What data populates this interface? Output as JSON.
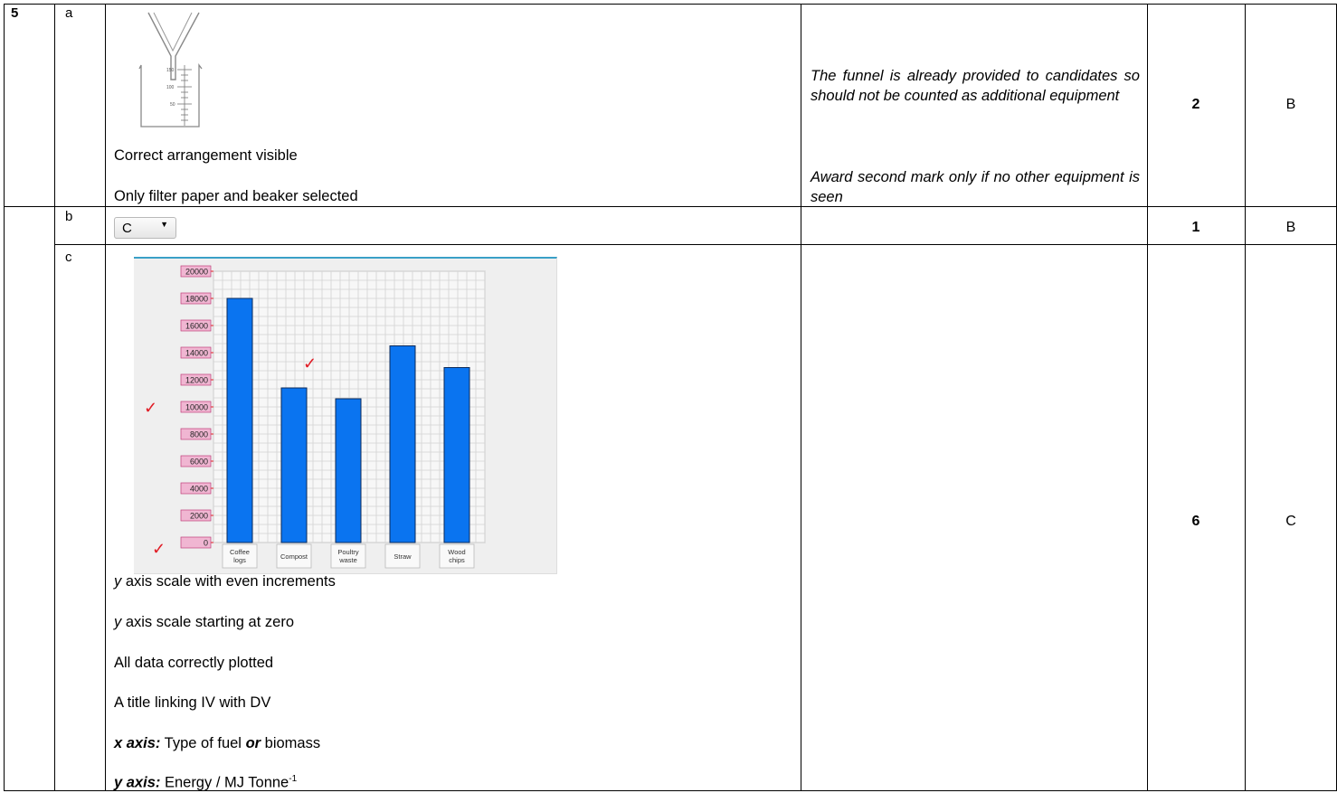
{
  "question": {
    "number": "5",
    "parts": [
      {
        "label": "a",
        "answer_lines": [
          "Correct arrangement visible",
          "Only filter paper and beaker selected"
        ],
        "guidance": [
          "The funnel is already provided to candidates so should not be counted as additional equipment",
          "Award second mark only if no other equipment is seen"
        ],
        "marks": "2",
        "ao": "B",
        "beaker_labels": [
          "150",
          "100",
          "50"
        ]
      },
      {
        "label": "b",
        "dropdown_value": "C",
        "marks": "1",
        "ao": "B"
      },
      {
        "label": "c",
        "tick_symbol": "✓",
        "answer_lines": [
          {
            "prefix": "y",
            "text": " axis scale with even increments"
          },
          {
            "prefix": "y",
            "text": " axis scale starting at zero"
          },
          {
            "prefix": "",
            "text": "All data correctly plotted"
          },
          {
            "prefix": "",
            "text": "A title linking IV with DV"
          },
          {
            "bold_label": "x axis:",
            "text1": " Type of fuel ",
            "or": "or",
            "text2": " biomass"
          },
          {
            "bold_label": "y axis:",
            "text1": " Energy / MJ Tonne",
            "sup": "-1"
          }
        ],
        "marks": "6",
        "ao": "C"
      }
    ]
  },
  "chart_data": {
    "type": "bar",
    "categories": [
      [
        "Coffee",
        "logs"
      ],
      [
        "Compost"
      ],
      [
        "Poultry",
        "waste"
      ],
      [
        "Straw"
      ],
      [
        "Wood",
        "chips"
      ]
    ],
    "values": [
      18000,
      11400,
      10600,
      14500,
      12900
    ],
    "y_ticks": [
      "20000",
      "18000",
      "16000",
      "14000",
      "12000",
      "10000",
      "8000",
      "6000",
      "4000",
      "2000",
      "0"
    ],
    "ylim": [
      0,
      20000
    ],
    "grid": true,
    "colors": {
      "bar": "#0a74f0",
      "bar_edge": "#0b2a5a",
      "tick_label_bg": "#f0b6d2",
      "tick_label_border": "#c0407a",
      "tick_mark": "#e0202a"
    }
  }
}
